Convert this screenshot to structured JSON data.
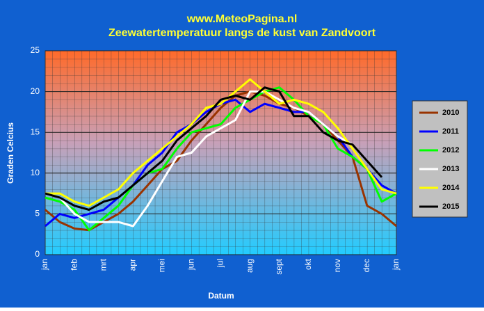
{
  "chart_data": {
    "type": "line",
    "title": "www.MeteoPagina.nl",
    "subtitle": "Zeewatertemperatuur langs de kust van Zandvoort",
    "x_label": "Datum",
    "y_label": "Graden Celcius",
    "categories": [
      "jan",
      null,
      "feb",
      null,
      "mrt",
      null,
      "apr",
      null,
      "mei",
      null,
      "jun",
      null,
      "jul",
      null,
      "aug",
      null,
      "sept",
      null,
      "okt",
      null,
      "nov",
      null,
      "dec",
      null,
      "jan"
    ],
    "ylim": [
      0,
      25
    ],
    "yticks": [
      0,
      5,
      10,
      15,
      20,
      25
    ],
    "grid": true,
    "legend": "right",
    "series": [
      {
        "name": "2010",
        "color": "#993300",
        "values": [
          5.5,
          4,
          3.2,
          3,
          4,
          5,
          6.5,
          8.5,
          10.5,
          11.5,
          14,
          16,
          18,
          19.5,
          20,
          19.5,
          18.5,
          18,
          17,
          16,
          14,
          12,
          6,
          5,
          3.5
        ]
      },
      {
        "name": "2011",
        "color": "#0000ff",
        "values": [
          3.5,
          5,
          4.5,
          5,
          5.5,
          7,
          8.5,
          11,
          12.5,
          15,
          16,
          17.5,
          18.5,
          19,
          17.5,
          18.5,
          18,
          17.5,
          17.5,
          16,
          14.5,
          12,
          10.5,
          8.5,
          7.5
        ]
      },
      {
        "name": "2012",
        "color": "#00ff00",
        "values": [
          7,
          6.5,
          5.5,
          3,
          4.5,
          6,
          8.5,
          10,
          10.5,
          13,
          15,
          15.5,
          16,
          18,
          19,
          20,
          20.5,
          19,
          17,
          16,
          13,
          12,
          10.5,
          6.5,
          7.5
        ]
      },
      {
        "name": "2013",
        "color": "#ffffff",
        "values": [
          7.5,
          7,
          5,
          4,
          4,
          4,
          3.5,
          6,
          9,
          12,
          12.5,
          14.5,
          15.5,
          16.5,
          20,
          20,
          19,
          18,
          17.5,
          16,
          14.5,
          13.5,
          11.5,
          null,
          null
        ]
      },
      {
        "name": "2014",
        "color": "#ffff00",
        "values": [
          7.5,
          7.5,
          6.5,
          6,
          7,
          8,
          10,
          11.5,
          13,
          14.5,
          16,
          18,
          18.5,
          20,
          21.5,
          20,
          18.5,
          19,
          18.5,
          17.5,
          15.5,
          13,
          10.5,
          8,
          7.5
        ]
      },
      {
        "name": "2015",
        "color": "#000000",
        "values": [
          7.5,
          7,
          6,
          5.5,
          6.5,
          7,
          8.5,
          10,
          11.5,
          14,
          15.5,
          17,
          19,
          19.5,
          19,
          20.5,
          20,
          17,
          17,
          15,
          14,
          13.5,
          11.5,
          9.5,
          null
        ]
      }
    ]
  }
}
